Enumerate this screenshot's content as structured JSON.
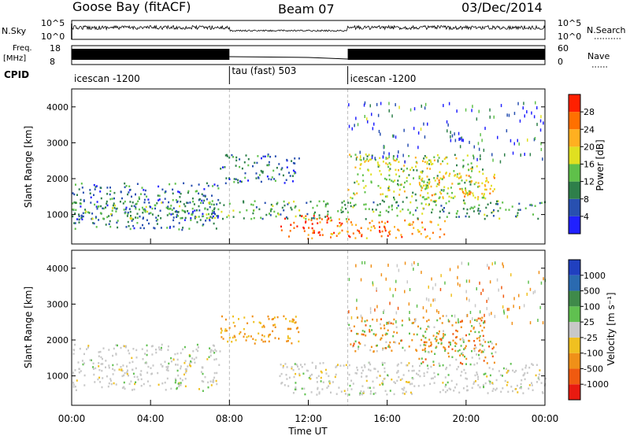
{
  "header": {
    "station": "Goose Bay (fitACF)",
    "beam": "Beam 07",
    "date": "03/Dec/2014"
  },
  "side_labels": {
    "nsky": "N.Sky",
    "freq_line1": "Freq.",
    "freq_line2": "[MHz]",
    "cpid": "CPID",
    "nsearch": "N.Search",
    "nave": "Nave",
    "nsky_top": "10^5",
    "nsky_bottom": "10^0",
    "nsearch_top": "10^5",
    "nsearch_bottom": "10^0",
    "freq_top": "18",
    "freq_bottom": "8",
    "nave_top": "60",
    "nave_bottom": "0"
  },
  "cpid_segments": [
    {
      "label": "icescan -1200",
      "start_hour": 0
    },
    {
      "label": "tau (fast) 503",
      "start_hour": 8
    },
    {
      "label": "icescan -1200",
      "start_hour": 14
    }
  ],
  "x_axis": {
    "title": "Time UT",
    "tick_labels": [
      "00:00",
      "04:00",
      "08:00",
      "12:00",
      "16:00",
      "20:00",
      "00:00"
    ],
    "tick_hours": [
      0,
      4,
      8,
      12,
      16,
      20,
      24
    ],
    "range_hours": [
      0,
      24
    ]
  },
  "colors": {
    "power": [
      "#2020ff",
      "#2850b0",
      "#2e7f4a",
      "#5fc04a",
      "#e0e020",
      "#ffb020",
      "#ff7000",
      "#ff2000"
    ],
    "velocity_pos": [
      "#2040c0",
      "#2a6ab0",
      "#3f8a4a",
      "#60c050"
    ],
    "velocity_mid": "#c8c8c8",
    "velocity_neg": [
      "#f0c020",
      "#f09018",
      "#f05a10",
      "#e81a10"
    ]
  },
  "chart_data": [
    {
      "type": "heatmap",
      "title": "Power",
      "ylabel": "Slant Range [km]",
      "xlabel": "",
      "ylim": [
        180,
        4500
      ],
      "y_ticks": [
        1000,
        2000,
        3000,
        4000
      ],
      "colorbar": {
        "label": "Power [dB]",
        "ticks": [
          "4",
          "8",
          "12",
          "16",
          "20",
          "24",
          "28"
        ],
        "range": [
          0,
          30
        ]
      },
      "scatter_regions": [
        {
          "hours": [
            0,
            7.5
          ],
          "range_km": [
            600,
            1900
          ],
          "level": 2
        },
        {
          "hours": [
            7.5,
            11.5
          ],
          "range_km": [
            1900,
            2700
          ],
          "level": 2
        },
        {
          "hours": [
            10.5,
            13.0
          ],
          "range_km": [
            350,
            1000
          ],
          "level": 7
        },
        {
          "hours": [
            13.0,
            19.0
          ],
          "range_km": [
            350,
            900
          ],
          "level": 6
        },
        {
          "hours": [
            14.0,
            21.0
          ],
          "range_km": [
            1400,
            2700
          ],
          "level": 4
        },
        {
          "hours": [
            17.5,
            21.5
          ],
          "range_km": [
            1500,
            2200
          ],
          "level": 5
        },
        {
          "hours": [
            0,
            24
          ],
          "range_km": [
            900,
            1400
          ],
          "level": 3
        }
      ]
    },
    {
      "type": "heatmap",
      "title": "Velocity",
      "ylabel": "Slant Range [km]",
      "xlabel": "Time UT",
      "ylim": [
        180,
        4500
      ],
      "y_ticks": [
        1000,
        2000,
        3000,
        4000
      ],
      "colorbar": {
        "label": "Velocity [m s⁻¹]",
        "ticks": [
          "1000",
          "500",
          "100",
          "25",
          "-25",
          "-100",
          "-500",
          "-1000"
        ],
        "range": [
          -1000,
          1000
        ]
      },
      "scatter_regions": [
        {
          "hours": [
            0,
            7.5
          ],
          "range_km": [
            600,
            1900
          ],
          "level": 0
        },
        {
          "hours": [
            7.5,
            11.5
          ],
          "range_km": [
            1900,
            2700
          ],
          "level": 1
        },
        {
          "hours": [
            10.5,
            24
          ],
          "range_km": [
            500,
            1400
          ],
          "level": 0
        },
        {
          "hours": [
            14.0,
            21.0
          ],
          "range_km": [
            1700,
            2700
          ],
          "level": 2
        },
        {
          "hours": [
            17.5,
            21.5
          ],
          "range_km": [
            1300,
            2100
          ],
          "level": 2
        }
      ]
    }
  ]
}
